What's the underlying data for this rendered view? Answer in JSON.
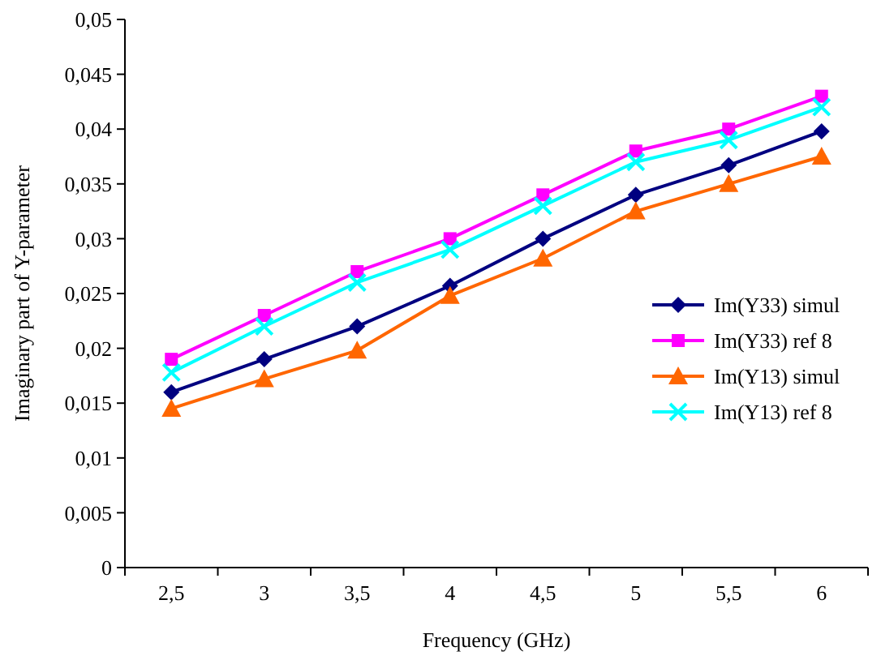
{
  "chart_data": {
    "type": "line",
    "xlabel": "Frequency (GHz)",
    "ylabel": "Imaginary part of Y-parameter",
    "categories": [
      "2,5",
      "3",
      "3,5",
      "4",
      "4,5",
      "5",
      "5,5",
      "6"
    ],
    "ylim": [
      0,
      0.05
    ],
    "yticks": [
      0,
      {
        "value": 0.005,
        "label": "0,005"
      },
      {
        "value": 0.01,
        "label": "0,01"
      },
      {
        "value": 0.015,
        "label": "0,015"
      },
      {
        "value": 0.02,
        "label": "0,02"
      },
      {
        "value": 0.025,
        "label": "0,025"
      },
      {
        "value": 0.03,
        "label": "0,03"
      },
      {
        "value": 0.035,
        "label": "0,035"
      },
      {
        "value": 0.04,
        "label": "0,04"
      },
      {
        "value": 0.045,
        "label": "0,045"
      },
      {
        "value": 0.05,
        "label": "0,05"
      }
    ],
    "grid": false,
    "legend": "right",
    "series": [
      {
        "name": "Im(Y33) simul",
        "color": "#000080",
        "marker": "diamond",
        "values": [
          0.016,
          0.019,
          0.022,
          0.0257,
          0.03,
          0.034,
          0.0367,
          0.0398
        ]
      },
      {
        "name": "Im(Y33) ref 8",
        "color": "#ff00ff",
        "marker": "square",
        "values": [
          0.019,
          0.023,
          0.027,
          0.03,
          0.034,
          0.038,
          0.04,
          0.043
        ]
      },
      {
        "name": "Im(Y13) simul",
        "color": "#ff6600",
        "marker": "triangle",
        "values": [
          0.0145,
          0.0172,
          0.0198,
          0.0248,
          0.0282,
          0.0325,
          0.035,
          0.0375
        ]
      },
      {
        "name": "Im(Y13) ref 8",
        "color": "#00ffff",
        "marker": "cross",
        "values": [
          0.0178,
          0.022,
          0.026,
          0.029,
          0.033,
          0.037,
          0.039,
          0.042
        ]
      }
    ]
  }
}
